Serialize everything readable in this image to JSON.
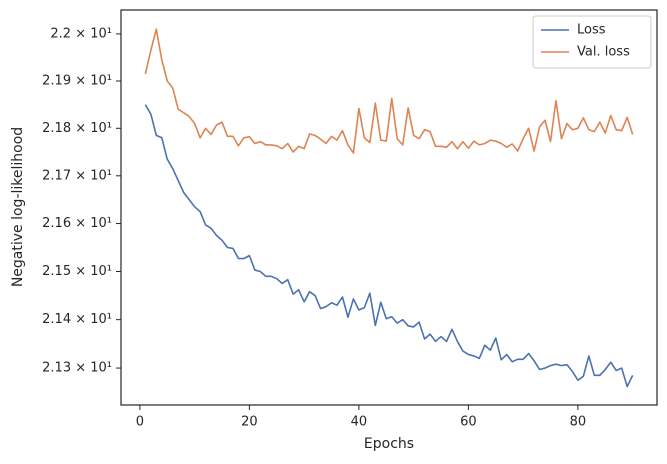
{
  "chart_data": {
    "type": "line",
    "xlabel": "Epochs",
    "ylabel": "Negative log-likelihood",
    "x": [
      1,
      2,
      3,
      4,
      5,
      6,
      7,
      8,
      9,
      10,
      11,
      12,
      13,
      14,
      15,
      16,
      17,
      18,
      19,
      20,
      21,
      22,
      23,
      24,
      25,
      26,
      27,
      28,
      29,
      30,
      31,
      32,
      33,
      34,
      35,
      36,
      37,
      38,
      39,
      40,
      41,
      42,
      43,
      44,
      45,
      46,
      47,
      48,
      49,
      50,
      51,
      52,
      53,
      54,
      55,
      56,
      57,
      58,
      59,
      60,
      61,
      62,
      63,
      64,
      65,
      66,
      67,
      68,
      69,
      70,
      71,
      72,
      73,
      74,
      75,
      76,
      77,
      78,
      79,
      80,
      81,
      82,
      83,
      84,
      85,
      86,
      87,
      88,
      89,
      90
    ],
    "series": [
      {
        "name": "Loss",
        "color": "#4c72b0",
        "values": [
          21.85,
          21.83,
          21.785,
          21.78,
          21.735,
          21.715,
          21.69,
          21.665,
          21.65,
          21.635,
          21.625,
          21.597,
          21.59,
          21.575,
          21.565,
          21.55,
          21.548,
          21.527,
          21.527,
          21.533,
          21.503,
          21.5,
          21.49,
          21.49,
          21.485,
          21.475,
          21.483,
          21.453,
          21.462,
          21.437,
          21.458,
          21.45,
          21.423,
          21.427,
          21.435,
          21.43,
          21.447,
          21.405,
          21.443,
          21.42,
          21.425,
          21.455,
          21.388,
          21.436,
          21.402,
          21.406,
          21.393,
          21.4,
          21.387,
          21.385,
          21.395,
          21.36,
          21.37,
          21.355,
          21.365,
          21.355,
          21.38,
          21.355,
          21.335,
          21.328,
          21.325,
          21.32,
          21.347,
          21.337,
          21.362,
          21.317,
          21.328,
          21.313,
          21.318,
          21.318,
          21.33,
          21.315,
          21.297,
          21.3,
          21.305,
          21.308,
          21.305,
          21.307,
          21.293,
          21.275,
          21.283,
          21.325,
          21.285,
          21.285,
          21.297,
          21.312,
          21.295,
          21.3,
          21.262,
          21.285
        ]
      },
      {
        "name": "Val. loss",
        "color": "#dd8452",
        "values": [
          21.915,
          21.965,
          22.01,
          21.945,
          21.9,
          21.885,
          21.84,
          21.833,
          21.825,
          21.81,
          21.78,
          21.8,
          21.787,
          21.807,
          21.813,
          21.783,
          21.783,
          21.763,
          21.78,
          21.782,
          21.768,
          21.772,
          21.765,
          21.765,
          21.763,
          21.757,
          21.768,
          21.75,
          21.762,
          21.757,
          21.788,
          21.785,
          21.777,
          21.768,
          21.783,
          21.775,
          21.795,
          21.765,
          21.748,
          21.842,
          21.78,
          21.77,
          21.853,
          21.775,
          21.773,
          21.863,
          21.778,
          21.765,
          21.843,
          21.785,
          21.778,
          21.797,
          21.793,
          21.762,
          21.762,
          21.76,
          21.772,
          21.757,
          21.772,
          21.758,
          21.773,
          21.765,
          21.768,
          21.775,
          21.773,
          21.768,
          21.76,
          21.767,
          21.752,
          21.778,
          21.8,
          21.752,
          21.803,
          21.817,
          21.772,
          21.858,
          21.778,
          21.81,
          21.797,
          21.8,
          21.822,
          21.797,
          21.793,
          21.813,
          21.79,
          21.827,
          21.797,
          21.795,
          21.823,
          21.787
        ]
      }
    ],
    "xlim": [
      -3.45,
      94.45
    ],
    "xticks": [
      0,
      20,
      40,
      60,
      80
    ],
    "ylim": [
      21.224,
      22.051
    ],
    "ylog": true,
    "yticks": [
      {
        "value": 21.3,
        "label": "2.13 × 10¹"
      },
      {
        "value": 21.4,
        "label": "2.14 × 10¹"
      },
      {
        "value": 21.5,
        "label": "2.15 × 10¹"
      },
      {
        "value": 21.6,
        "label": "2.16 × 10¹"
      },
      {
        "value": 21.7,
        "label": "2.17 × 10¹"
      },
      {
        "value": 21.8,
        "label": "2.18 × 10¹"
      },
      {
        "value": 21.9,
        "label": "2.19 × 10¹"
      },
      {
        "value": 22,
        "label": "2.2 × 10¹"
      }
    ],
    "grid": false,
    "legend": "upper right"
  }
}
